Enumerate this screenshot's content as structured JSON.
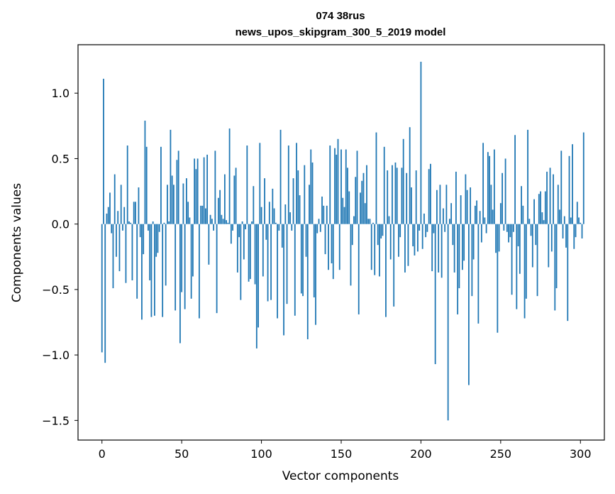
{
  "chart_data": {
    "type": "bar",
    "title": "074 38rus",
    "subtitle": "news_upos_skipgram_300_5_2019 model",
    "xlabel": "Vector components",
    "ylabel": "Components values",
    "xlim": [
      -15,
      315
    ],
    "ylim": [
      -1.65,
      1.37
    ],
    "xticks": [
      0,
      50,
      100,
      150,
      200,
      250,
      300
    ],
    "xtick_labels": [
      "0",
      "50",
      "100",
      "150",
      "200",
      "250",
      "300"
    ],
    "yticks": [
      -1.5,
      -1.0,
      -0.5,
      0.0,
      0.5,
      1.0
    ],
    "ytick_labels": [
      "−1.5",
      "−1.0",
      "−0.5",
      "0.0",
      "0.5",
      "1.0"
    ],
    "bar_color": "#1f77b4",
    "series": [
      {
        "name": "components",
        "values": [
          -0.98,
          1.11,
          -1.06,
          0.08,
          0.13,
          0.24,
          -0.07,
          -0.49,
          0.38,
          -0.25,
          0.1,
          -0.36,
          0.3,
          -0.05,
          0.13,
          -0.45,
          0.6,
          0.02,
          0.01,
          -0.43,
          0.17,
          0.17,
          -0.57,
          0.28,
          -0.1,
          -0.73,
          -0.23,
          0.79,
          0.59,
          -0.05,
          -0.43,
          -0.71,
          0.02,
          -0.7,
          -0.25,
          -0.22,
          -0.06,
          0.59,
          -0.71,
          0.01,
          -0.47,
          0.3,
          0.02,
          0.72,
          0.37,
          0.3,
          -0.66,
          0.49,
          0.56,
          -0.91,
          -0.52,
          0.31,
          -0.65,
          0.35,
          0.17,
          0.05,
          -0.57,
          -0.4,
          0.5,
          0.42,
          0.5,
          -0.72,
          0.14,
          0.14,
          0.51,
          0.12,
          0.53,
          -0.31,
          0.07,
          0.04,
          -0.05,
          0.56,
          -0.68,
          0.2,
          0.26,
          0.07,
          0.04,
          0.38,
          0.03,
          0.01,
          0.73,
          -0.15,
          -0.05,
          0.37,
          0.43,
          -0.37,
          -0.1,
          -0.58,
          0.02,
          -0.27,
          -0.04,
          0.6,
          -0.44,
          -0.42,
          0.02,
          0.29,
          -0.46,
          -0.95,
          -0.79,
          0.62,
          0.13,
          -0.4,
          0.35,
          -0.12,
          -0.59,
          0.17,
          -0.58,
          0.27,
          0.12,
          0.01,
          -0.72,
          -0.05,
          0.72,
          -0.18,
          -0.85,
          0.15,
          -0.61,
          0.6,
          0.09,
          -0.05,
          0.35,
          -0.7,
          0.62,
          0.41,
          0.22,
          -0.53,
          -0.55,
          0.45,
          -0.25,
          -0.88,
          0.3,
          0.57,
          0.47,
          -0.56,
          -0.77,
          -0.07,
          0.04,
          -0.06,
          0.21,
          0.14,
          -0.23,
          0.14,
          -0.35,
          0.6,
          -0.3,
          -0.42,
          0.58,
          0.53,
          0.65,
          -0.35,
          0.57,
          0.2,
          0.13,
          0.57,
          0.43,
          0.25,
          -0.47,
          -0.16,
          0.06,
          0.36,
          0.56,
          -0.69,
          0.24,
          0.33,
          0.39,
          0.16,
          0.45,
          0.04,
          0.04,
          -0.35,
          0.01,
          -0.39,
          0.7,
          -0.16,
          -0.4,
          -0.11,
          -0.09,
          0.59,
          -0.71,
          0.41,
          0.06,
          -0.27,
          0.45,
          -0.63,
          0.47,
          0.43,
          -0.25,
          -0.1,
          0.43,
          0.65,
          -0.37,
          0.39,
          -0.32,
          0.74,
          0.28,
          -0.17,
          -0.24,
          0.41,
          -0.21,
          -0.05,
          1.24,
          -0.19,
          0.08,
          -0.1,
          -0.06,
          0.42,
          0.46,
          -0.36,
          -0.07,
          -1.07,
          0.26,
          -0.37,
          0.3,
          -0.41,
          0.12,
          -0.06,
          0.3,
          -1.5,
          0.04,
          0.16,
          -0.16,
          -0.37,
          0.4,
          -0.69,
          -0.49,
          0.22,
          -0.35,
          -0.28,
          0.38,
          0.26,
          -1.23,
          0.28,
          -0.55,
          -0.27,
          0.14,
          0.18,
          -0.76,
          0.1,
          -0.14,
          0.62,
          0.05,
          -0.07,
          0.55,
          0.52,
          0.3,
          0.11,
          0.57,
          -0.22,
          -0.83,
          -0.21,
          0.16,
          0.39,
          -0.05,
          0.5,
          -0.06,
          -0.14,
          -0.1,
          -0.54,
          -0.06,
          0.68,
          -0.65,
          -0.17,
          -0.38,
          0.29,
          0.14,
          -0.72,
          -0.57,
          0.72,
          0.04,
          -0.09,
          -0.33,
          0.19,
          -0.16,
          -0.55,
          0.23,
          0.25,
          0.09,
          0.03,
          0.25,
          0.4,
          -0.33,
          0.43,
          -0.21,
          0.38,
          -0.66,
          -0.49,
          0.3,
          0.11,
          0.56,
          -0.11,
          0.06,
          -0.18,
          -0.74,
          0.52,
          0.05,
          0.61,
          -0.19,
          -0.1,
          0.17,
          0.05,
          0.01,
          -0.11,
          0.7
        ]
      }
    ]
  }
}
